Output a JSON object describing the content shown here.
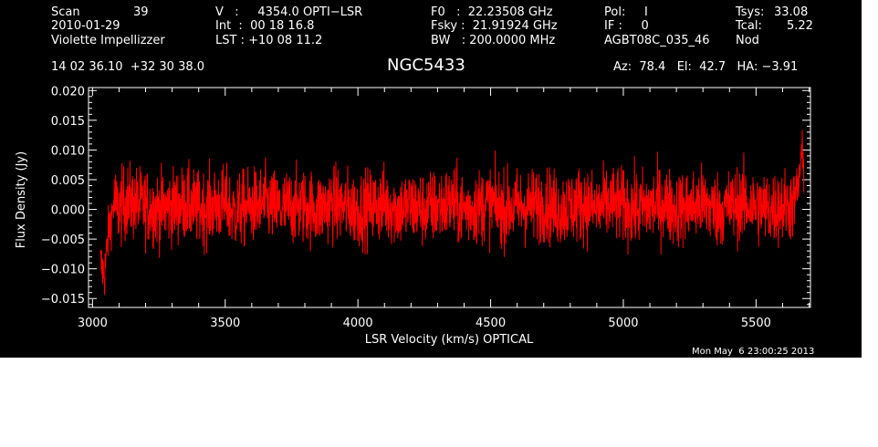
{
  "header": {
    "col1": {
      "scan_label": "Scan",
      "scan_value": "39",
      "date": "2010-01-29",
      "observer": "Violette Impellizzer"
    },
    "col2": {
      "v_line": "V   :     4354.0 OPTI−LSR",
      "int_line": "Int  :  00 18 16.8",
      "lst_line": "LST : +10 08 11.2"
    },
    "col3": {
      "f0_line": "F0   :  22.23508 GHz",
      "fsky_line": "Fsky :  21.91924 GHz",
      "bw_line": "BW   : 200.0000 MHz"
    },
    "col4": {
      "pol_line": "Pol:     I",
      "if_line": "IF :     0",
      "project": "AGBT08C_035_46"
    },
    "col5": {
      "tsys_label": "Tsys:",
      "tsys_value": "33.08",
      "tcal_label": "Tcal:",
      "tcal_value": "5.22",
      "mode": "Nod"
    },
    "coords": "14 02 36.10  +32 30 38.0",
    "source": "NGC5433",
    "az_el_ha": "Az:  78.4   El:  42.7   HA: −3.91"
  },
  "timestamp": "Mon May  6 23:00:25 2013",
  "colors": {
    "trace": "#ff0000",
    "axes": "#ffffff",
    "background": "#000000"
  },
  "chart_data": {
    "type": "line",
    "title": "NGC5433",
    "xlabel": "LSR Velocity (km/s) OPTICAL",
    "ylabel": "Flux Density (Jy)",
    "xlim": [
      2985,
      5705
    ],
    "ylim": [
      -0.0165,
      0.0205
    ],
    "x_ticks": [
      3000,
      3500,
      4000,
      4500,
      5000,
      5500
    ],
    "x_tick_labels": [
      "3000",
      "3500",
      "4000",
      "4500",
      "5000",
      "5500"
    ],
    "y_ticks": [
      -0.015,
      -0.01,
      -0.005,
      0.0,
      0.005,
      0.01,
      0.015,
      0.02
    ],
    "y_tick_labels": [
      "−0.015",
      "−0.010",
      "−0.005",
      "0.000",
      "0.005",
      "0.010",
      "0.015",
      "0.020"
    ],
    "series": [
      {
        "x": [
          3030,
          3045,
          3060,
          3080,
          3100,
          3130,
          3160,
          3200,
          3250,
          3300,
          3350,
          3400,
          3450,
          3500,
          3530,
          3560,
          3600,
          3650,
          3700,
          3750,
          3800,
          3850,
          3900,
          3950,
          4000,
          4050,
          4100,
          4150,
          4200,
          4250,
          4300,
          4350,
          4400,
          4450,
          4500,
          4550,
          4600,
          4650,
          4700,
          4750,
          4800,
          4850,
          4900,
          4950,
          5000,
          5050,
          5100,
          5150,
          5200,
          5250,
          5300,
          5350,
          5400,
          5450,
          5500,
          5550,
          5600,
          5640,
          5660,
          5670,
          5680
        ],
        "y": [
          -0.009,
          -0.011,
          -0.004,
          0.001,
          0.0,
          0.0015,
          0.001,
          0.0005,
          0.0,
          0.0005,
          0.001,
          0.0,
          0.0005,
          0.001,
          -0.0005,
          0.0,
          0.0005,
          0.001,
          0.0,
          0.0005,
          0.0005,
          0.0,
          0.001,
          0.0005,
          0.0,
          0.0005,
          0.001,
          0.0,
          0.0005,
          0.0,
          0.0005,
          0.001,
          0.0,
          0.0005,
          0.001,
          0.0,
          0.0005,
          0.0005,
          0.001,
          0.0,
          0.0005,
          0.001,
          0.0,
          0.001,
          0.0005,
          0.0,
          0.0005,
          0.001,
          0.0,
          0.0005,
          0.001,
          0.0,
          0.0005,
          0.001,
          0.0005,
          0.0,
          0.0005,
          0.001,
          0.004,
          0.009,
          0.007
        ]
      }
    ],
    "grid": false,
    "legend": "none"
  }
}
